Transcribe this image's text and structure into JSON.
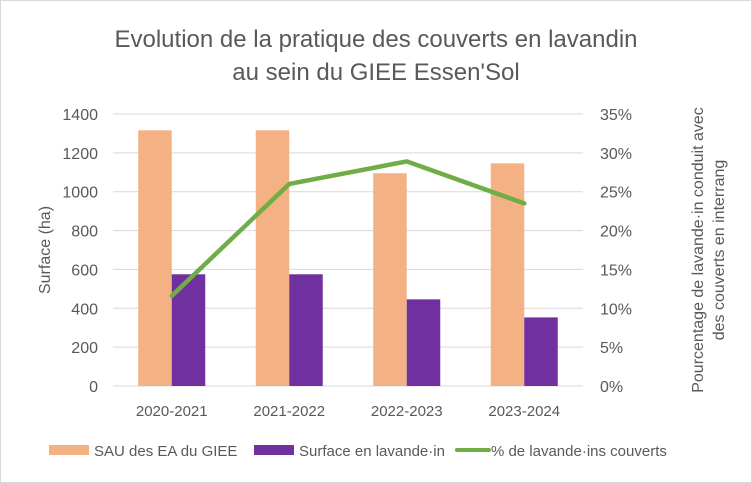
{
  "chart_data": {
    "type": "bar",
    "title": [
      "Evolution de la pratique des couverts en lavandin",
      "au sein du GIEE Essen'Sol"
    ],
    "categories": [
      "2020-2021",
      "2021-2022",
      "2022-2023",
      "2023-2024"
    ],
    "ylabel": "Surface (ha)",
    "y2label": [
      "Pourcentage de lavande·in  conduit avec",
      "des couverts en interrang"
    ],
    "ylim": [
      0,
      1400
    ],
    "y_ticks": [
      "0",
      "200",
      "400",
      "600",
      "800",
      "1000",
      "1200",
      "1400"
    ],
    "y2lim": [
      0,
      35
    ],
    "y2_ticks": [
      "0%",
      "5%",
      "10%",
      "15%",
      "20%",
      "25%",
      "30%",
      "35%"
    ],
    "grid": true,
    "legend_position": "bottom",
    "series": [
      {
        "name": "SAU des EA du GIEE",
        "type": "bar",
        "axis": "left",
        "color": "#F4B183",
        "values": [
          1316,
          1316,
          1095,
          1146
        ]
      },
      {
        "name": "Surface en lavande·in",
        "type": "bar",
        "axis": "left",
        "color": "#7030A0",
        "values": [
          575,
          575,
          446,
          353
        ]
      },
      {
        "name": "% de lavande·ins couverts",
        "type": "line",
        "axis": "right",
        "color": "#70AD47",
        "values": [
          11.6,
          26.0,
          28.9,
          23.5
        ]
      }
    ]
  }
}
